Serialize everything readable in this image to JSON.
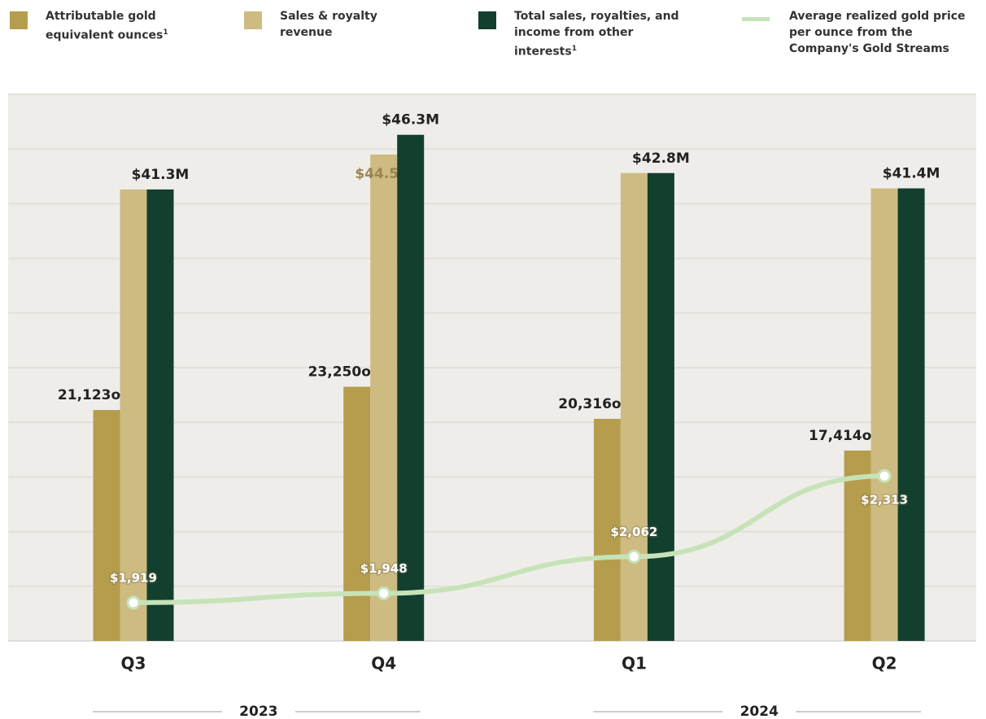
{
  "chart_data": {
    "type": "bar",
    "categories": [
      "Q3",
      "Q4",
      "Q1",
      "Q2"
    ],
    "category_groups": [
      {
        "name": "2023",
        "span": 2
      },
      {
        "name": "2024",
        "span": 2
      }
    ],
    "series": [
      {
        "name": "Attributable gold equivalent ounces",
        "footnote": "1",
        "color": "#b59d4d",
        "axis": "y2",
        "values": [
          21123,
          23250,
          20316,
          17414
        ],
        "value_labels": [
          "21,123oz",
          "23,250oz",
          "20,316oz",
          "17,414oz"
        ]
      },
      {
        "name": "Sales & royalty revenue",
        "color": "#cdbb82",
        "values": [
          41.3,
          44.5,
          42.8,
          41.4
        ],
        "value_labels": [
          null,
          "$44.5M",
          null,
          null
        ]
      },
      {
        "name": "Total sales, royalties, and income from other interests",
        "footnote": "1",
        "color": "#133f2f",
        "values": [
          41.3,
          46.3,
          42.8,
          41.4
        ],
        "value_labels": [
          "$41.3M",
          "$46.3M",
          "$42.8M",
          "$41.4M"
        ]
      },
      {
        "name": "Average realized gold price per ounce from the Company's Gold Streams",
        "type": "line",
        "color": "#c6e3b8",
        "axis": "y3",
        "values": [
          1919,
          1948,
          2062,
          2313
        ],
        "value_labels": [
          "$1,919",
          "$1,948",
          "$2,062",
          "$2,313"
        ]
      }
    ],
    "ylim": [
      0,
      50
    ],
    "yticks": [
      0,
      5,
      10,
      15,
      20,
      25,
      30,
      35,
      40,
      45,
      50
    ],
    "y2lim": [
      0,
      50000
    ],
    "y3lim": [
      1800,
      3500
    ],
    "grid": true,
    "legend": "top"
  }
}
